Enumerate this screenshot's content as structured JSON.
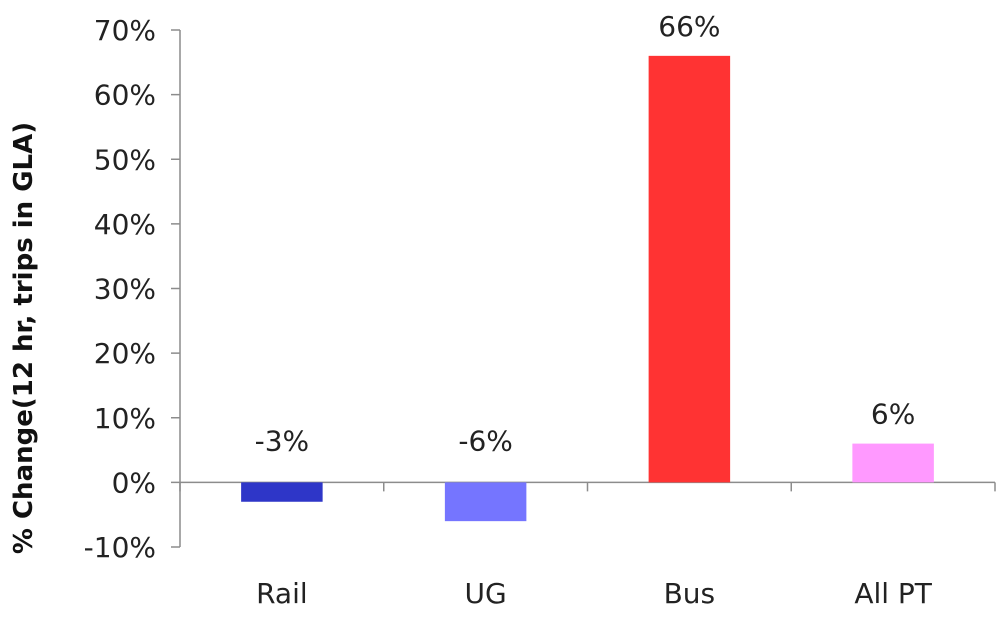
{
  "chart_data": {
    "type": "bar",
    "title": "",
    "xlabel": "",
    "ylabel": "% Change(12 hr, trips in GLA)",
    "categories": [
      "Rail",
      "UG",
      "Bus",
      "All PT"
    ],
    "values": [
      -3,
      -6,
      66,
      6
    ],
    "data_labels": [
      "-3%",
      "-6%",
      "66%",
      "6%"
    ],
    "colors": [
      "#2e36c8",
      "#7575ff",
      "#ff3333",
      "#ff99ff"
    ],
    "ylim": [
      -10,
      70
    ],
    "yticks": [
      -10,
      0,
      10,
      20,
      30,
      40,
      50,
      60,
      70
    ],
    "ytick_labels": [
      "-10%",
      "0%",
      "10%",
      "20%",
      "30%",
      "40%",
      "50%",
      "60%",
      "70%"
    ],
    "grid": false,
    "legend": "none"
  }
}
